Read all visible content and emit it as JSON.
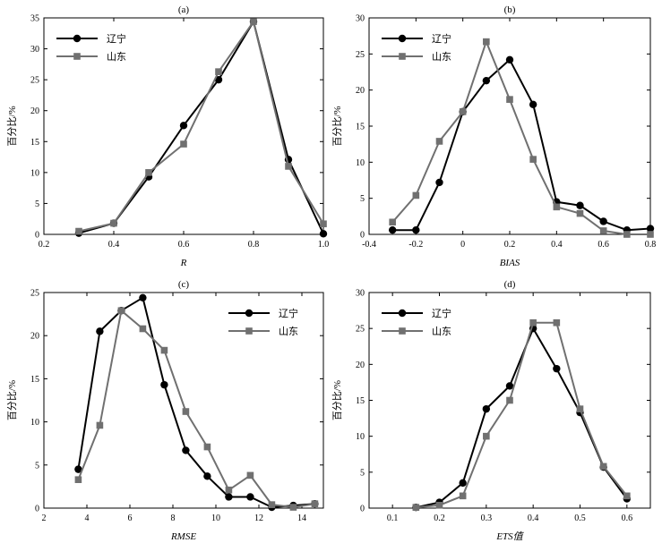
{
  "colors": {
    "liaoning": "#000000",
    "shandong": "#707070"
  },
  "chart_data": [
    {
      "type": "line",
      "title": "(a)",
      "xlabel": "R",
      "ylabel": "百分比/%",
      "xlim": [
        0.2,
        1.0
      ],
      "ylim": [
        0,
        35
      ],
      "xticks": [
        0.2,
        0.4,
        0.6,
        0.8,
        1.0
      ],
      "xtick_labels": [
        "0.2",
        "0.4",
        "0.6",
        "0.8",
        "1.0"
      ],
      "yticks": [
        0,
        5,
        10,
        15,
        20,
        25,
        30,
        35
      ],
      "ytick_labels": [
        "0",
        "5",
        "10",
        "15",
        "20",
        "25",
        "30",
        "35"
      ],
      "legend_position": "top-left",
      "series": [
        {
          "name": "辽宁",
          "marker": "circle",
          "x": [
            0.3,
            0.4,
            0.5,
            0.6,
            0.7,
            0.8,
            0.9,
            1.0
          ],
          "y": [
            0.2,
            1.8,
            9.3,
            17.6,
            25.0,
            34.4,
            12.1,
            0.1
          ]
        },
        {
          "name": "山东",
          "marker": "square",
          "x": [
            0.3,
            0.4,
            0.5,
            0.6,
            0.7,
            0.8,
            0.9,
            1.0
          ],
          "y": [
            0.5,
            1.8,
            10.0,
            14.6,
            26.3,
            34.4,
            11.0,
            1.7
          ]
        }
      ]
    },
    {
      "type": "line",
      "title": "(b)",
      "xlabel": "BIAS",
      "ylabel": "百分比/%",
      "xlim": [
        -0.4,
        0.8
      ],
      "ylim": [
        0,
        30
      ],
      "xticks": [
        -0.4,
        -0.2,
        0,
        0.2,
        0.4,
        0.6,
        0.8
      ],
      "xtick_labels": [
        "-0.4",
        "-0.2",
        "0",
        "0.2",
        "0.4",
        "0.6",
        "0.8"
      ],
      "yticks": [
        0,
        5,
        10,
        15,
        20,
        25,
        30
      ],
      "ytick_labels": [
        "0",
        "5",
        "10",
        "15",
        "20",
        "25",
        "30"
      ],
      "legend_position": "top-left",
      "series": [
        {
          "name": "辽宁",
          "marker": "circle",
          "x": [
            -0.3,
            -0.2,
            -0.1,
            0,
            0.1,
            0.2,
            0.3,
            0.4,
            0.5,
            0.6,
            0.7,
            0.8
          ],
          "y": [
            0.6,
            0.6,
            7.2,
            17.0,
            21.3,
            24.2,
            18.0,
            4.5,
            4.0,
            1.8,
            0.6,
            0.8
          ]
        },
        {
          "name": "山东",
          "marker": "square",
          "x": [
            -0.3,
            -0.2,
            -0.1,
            0,
            0.1,
            0.2,
            0.3,
            0.4,
            0.5,
            0.6,
            0.7,
            0.8
          ],
          "y": [
            1.7,
            5.4,
            12.9,
            17.0,
            26.7,
            18.7,
            10.4,
            3.8,
            2.9,
            0.5,
            0.0,
            0.0
          ]
        }
      ]
    },
    {
      "type": "line",
      "title": "(c)",
      "xlabel": "RMSE",
      "ylabel": "百分比/%",
      "xlim": [
        2,
        15
      ],
      "ylim": [
        0,
        25
      ],
      "xticks": [
        2,
        4,
        6,
        8,
        10,
        12,
        14
      ],
      "xtick_labels": [
        "2",
        "4",
        "6",
        "8",
        "10",
        "12",
        "14"
      ],
      "yticks": [
        0,
        5,
        10,
        15,
        20,
        25
      ],
      "ytick_labels": [
        "0",
        "5",
        "10",
        "15",
        "20",
        "25"
      ],
      "legend_position": "top-right",
      "series": [
        {
          "name": "辽宁",
          "marker": "circle",
          "x": [
            3.6,
            4.6,
            5.6,
            6.6,
            7.6,
            8.6,
            9.6,
            10.6,
            11.6,
            12.6,
            13.6,
            14.6
          ],
          "y": [
            4.5,
            20.5,
            22.9,
            24.4,
            14.3,
            6.7,
            3.7,
            1.3,
            1.3,
            0.1,
            0.3,
            0.5
          ]
        },
        {
          "name": "山东",
          "marker": "square",
          "x": [
            3.6,
            4.6,
            5.6,
            6.6,
            7.6,
            8.6,
            9.6,
            10.6,
            11.6,
            12.6,
            13.6,
            14.6
          ],
          "y": [
            3.3,
            9.6,
            22.9,
            20.8,
            18.3,
            11.2,
            7.1,
            2.1,
            3.8,
            0.4,
            0.1,
            0.5
          ]
        }
      ]
    },
    {
      "type": "line",
      "title": "(d)",
      "xlabel": "ETS值",
      "ylabel": "百分比/%",
      "xlim": [
        0.05,
        0.65
      ],
      "ylim": [
        0,
        30
      ],
      "xticks": [
        0.1,
        0.2,
        0.3,
        0.4,
        0.5,
        0.6
      ],
      "xtick_labels": [
        "0.1",
        "0.2",
        "0.3",
        "0.4",
        "0.5",
        "0.6"
      ],
      "yticks": [
        0,
        5,
        10,
        15,
        20,
        25,
        30
      ],
      "ytick_labels": [
        "0",
        "5",
        "10",
        "15",
        "20",
        "25",
        "30"
      ],
      "legend_position": "top-left",
      "series": [
        {
          "name": "辽宁",
          "marker": "circle",
          "x": [
            0.15,
            0.2,
            0.25,
            0.3,
            0.35,
            0.4,
            0.45,
            0.5,
            0.55,
            0.6
          ],
          "y": [
            0.1,
            0.8,
            3.5,
            13.8,
            17.0,
            25.0,
            19.4,
            13.3,
            5.7,
            1.3
          ]
        },
        {
          "name": "山东",
          "marker": "square",
          "x": [
            0.15,
            0.2,
            0.25,
            0.3,
            0.35,
            0.4,
            0.45,
            0.5,
            0.55,
            0.6
          ],
          "y": [
            0.1,
            0.4,
            1.7,
            10.0,
            15.0,
            25.8,
            25.8,
            13.8,
            5.8,
            1.7
          ]
        }
      ]
    }
  ]
}
